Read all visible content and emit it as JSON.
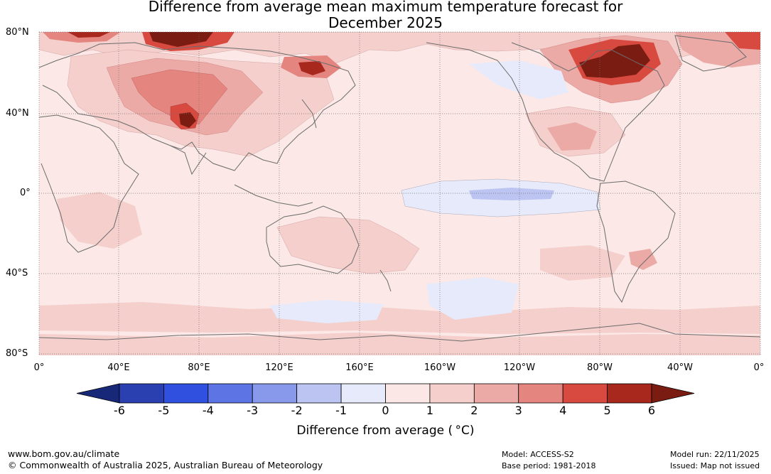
{
  "title": {
    "line1": "Difference from average mean maximum temperature forecast for",
    "line2": "December 2025"
  },
  "map": {
    "lat_labels": [
      "80°N",
      "40°N",
      "0°",
      "40°S",
      "80°S"
    ],
    "lon_labels": [
      "0°",
      "40°E",
      "80°E",
      "120°E",
      "160°E",
      "160°W",
      "120°W",
      "80°W",
      "40°W",
      "0°"
    ],
    "grid_color": "#6e6e6e",
    "coast_color": "#6b6b6b"
  },
  "colorbar": {
    "ticks": [
      "-6",
      "-5",
      "-4",
      "-3",
      "-2",
      "-1",
      "0",
      "1",
      "2",
      "3",
      "4",
      "5",
      "6"
    ],
    "colors": [
      "#182878",
      "#2a40b0",
      "#3050e0",
      "#5c74e4",
      "#8898ea",
      "#bcc5f2",
      "#e6eafa",
      "#fbe7e6",
      "#f4cfcc",
      "#ecaaa6",
      "#e48580",
      "#d84a40",
      "#a8281e",
      "#7a1c12"
    ],
    "label": "Difference from average ( °C)"
  },
  "footer": {
    "website": "www.bom.gov.au/climate",
    "copyright": "© Commonwealth of Australia 2025, Australian Bureau of Meteorology",
    "model": "Model: ACCESS-S2",
    "base_period": "Base period: 1981-2018",
    "model_run": "Model run: 22/11/2025",
    "issued": "Issued: Map not issued"
  }
}
